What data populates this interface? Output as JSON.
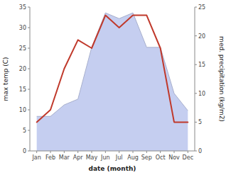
{
  "chart_data": {
    "type": "line",
    "xlabel": "date (month)",
    "ylabel": "max temp (C)",
    "y2label": "med. precipitation (kg/m2)",
    "categories": [
      "Jan",
      "Feb",
      "Mar",
      "Apr",
      "May",
      "Jun",
      "Jul",
      "Aug",
      "Sep",
      "Oct",
      "Nov",
      "Dec"
    ],
    "series": [
      {
        "type": "line",
        "color": "#c0392b",
        "values": [
          7,
          10,
          20,
          27,
          25,
          33,
          30,
          33,
          33,
          25,
          7,
          7
        ]
      },
      {
        "type": "area",
        "axis": "y2",
        "color": "#c5cef0",
        "values": [
          6,
          6,
          8,
          9,
          18,
          24,
          23,
          24,
          18,
          18,
          10,
          7
        ]
      }
    ],
    "ylim": [
      0,
      35
    ],
    "yticks": [
      0,
      5,
      10,
      15,
      20,
      25,
      30,
      35
    ],
    "y2lim": [
      0,
      25
    ],
    "y2ticks": [
      0,
      5,
      10,
      15,
      20,
      25
    ],
    "grid": false
  }
}
